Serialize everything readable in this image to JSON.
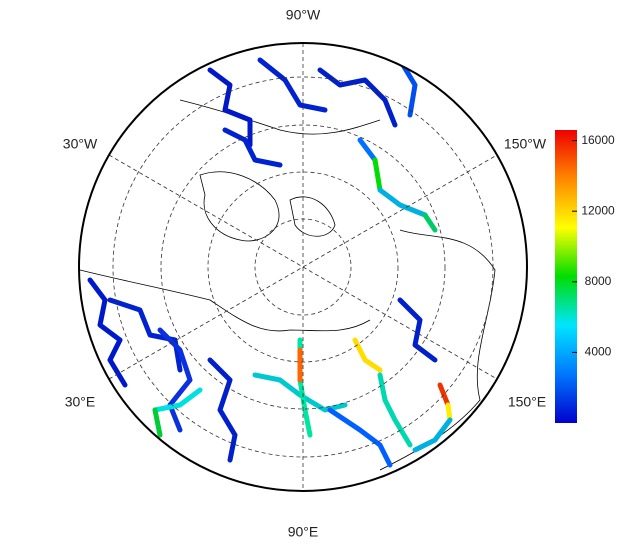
{
  "map": {
    "longitude_labels": {
      "top": "90°W",
      "upper_left": "30°W",
      "upper_right": "150°W",
      "lower_left": "30°E",
      "lower_right": "150°E",
      "bottom": "90°E"
    }
  },
  "colorbar": {
    "lim": [
      0,
      16600
    ],
    "ticks": [
      4000,
      8000,
      12000,
      16000
    ],
    "colors": [
      "#0000cc",
      "#0077ff",
      "#00e5ff",
      "#00dd00",
      "#ffff00",
      "#ff8800",
      "#ee0000"
    ]
  }
}
